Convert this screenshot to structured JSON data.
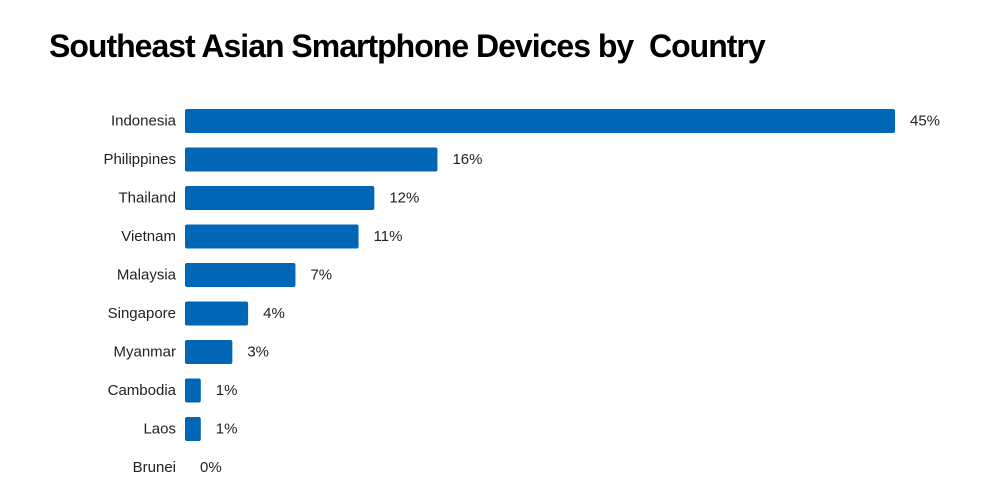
{
  "chart_data": {
    "type": "bar",
    "orientation": "horizontal",
    "title": "Southeast Asian Smartphone Devices by  Country",
    "categories": [
      "Indonesia",
      "Philippines",
      "Thailand",
      "Vietnam",
      "Malaysia",
      "Singapore",
      "Myanmar",
      "Cambodia",
      "Laos",
      "Brunei"
    ],
    "values": [
      45,
      16,
      12,
      11,
      7,
      4,
      3,
      1,
      1,
      0
    ],
    "value_labels": [
      "45%",
      "16%",
      "12%",
      "11%",
      "7%",
      "4%",
      "3%",
      "1%",
      "1%",
      "0%"
    ],
    "xlim": [
      0,
      45
    ],
    "grid": false,
    "bar_color": "#0066B5"
  }
}
